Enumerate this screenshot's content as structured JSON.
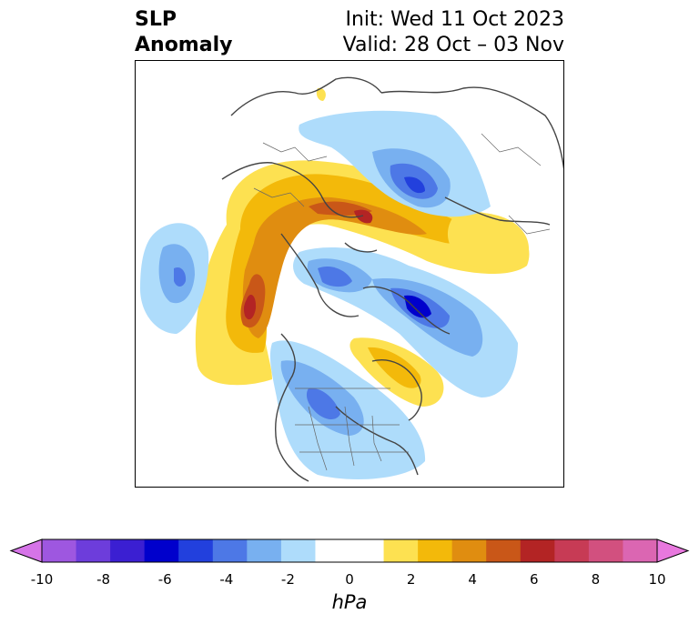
{
  "title": {
    "left_line1": "SLP",
    "left_line2": "Anomaly",
    "right_line1": "Init: Wed 11 Oct 2023",
    "right_line2": "Valid: 28 Oct – 03 Nov"
  },
  "colorbar": {
    "label": "hPa",
    "ticks": [
      "-10",
      "-8",
      "-6",
      "-4",
      "-2",
      "0",
      "2",
      "4",
      "6",
      "8",
      "10"
    ],
    "colors": [
      "#d674e8",
      "#9e57e0",
      "#6d3ddb",
      "#3b1fd2",
      "#0000cc",
      "#2240dd",
      "#4d78e6",
      "#78b0f0",
      "#aedcfb",
      "#ffffff",
      "#ffffff",
      "#fde151",
      "#f3b90a",
      "#e08d10",
      "#c95718",
      "#b32424",
      "#c73b55",
      "#d2507f",
      "#db66b2",
      "#e878de"
    ]
  }
}
